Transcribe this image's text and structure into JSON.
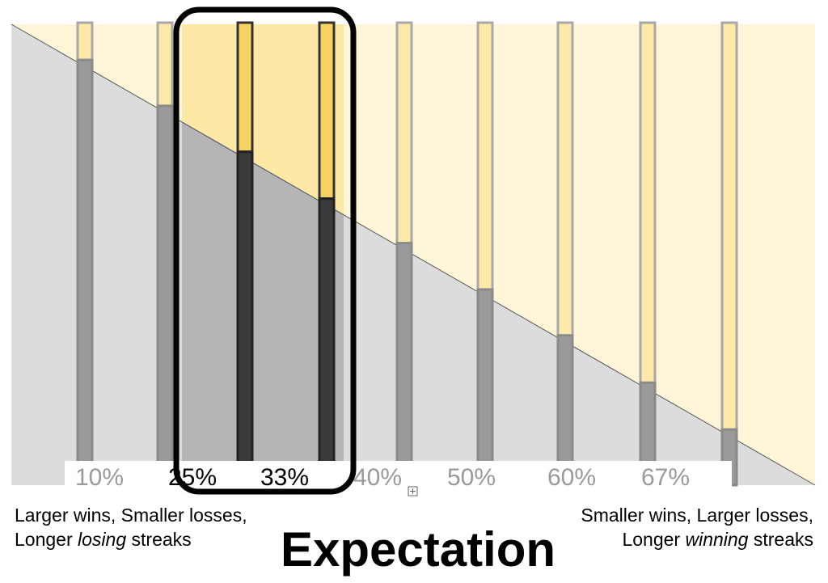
{
  "labels": [
    "10%",
    "25%",
    "33%",
    "40%",
    "50%",
    "60%",
    "67%"
  ],
  "left_caption": {
    "line1": "Larger wins, Smaller losses,",
    "line2": {
      "before": "Longer ",
      "emphasis": "losing",
      "after": " streaks"
    }
  },
  "right_caption": {
    "line1": "Smaller wins, Larger losses,",
    "line2": {
      "before": "Longer ",
      "emphasis": "winning",
      "after": " streaks"
    }
  },
  "title": "Expectation"
}
